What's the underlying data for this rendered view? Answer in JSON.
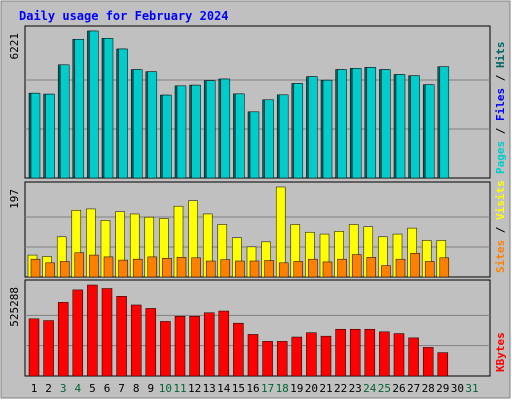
{
  "title": "Daily usage for February 2024",
  "colors": {
    "outer_bg": "#c0c0c0",
    "plot_bg": "#c0c0c0",
    "frame_dark": "#808080",
    "frame_light": "#ffffff",
    "title": "#0000ff",
    "hits": "#006666",
    "files": "#0000ff",
    "pages": "#00cccc",
    "visits": "#ffff00",
    "sites": "#ff8000",
    "kbytes": "#ff0000",
    "day_weekday": "#000000",
    "day_weekend": "#006633"
  },
  "chart_data": [
    {
      "type": "bar",
      "panel": "hits-files-pages",
      "ymax_label": "6221",
      "ylim": [
        0,
        6221
      ],
      "legend": [
        "Pages",
        "Files",
        "Hits"
      ],
      "categories": [
        "1",
        "2",
        "3",
        "4",
        "5",
        "6",
        "7",
        "8",
        "9",
        "10",
        "11",
        "12",
        "13",
        "14",
        "15",
        "16",
        "17",
        "18",
        "19",
        "20",
        "21",
        "22",
        "23",
        "24",
        "25",
        "26",
        "27",
        "28",
        "29"
      ],
      "series": [
        {
          "name": "Hits",
          "values": [
            3590,
            3550,
            4790,
            5870,
            6221,
            5910,
            5460,
            4590,
            4500,
            3510,
            3900,
            3930,
            4120,
            4190,
            3560,
            2800,
            3310,
            3520,
            4000,
            4290,
            4140,
            4590,
            4640,
            4680,
            4590,
            4380,
            4330,
            3950,
            4710
          ]
        },
        {
          "name": "Files",
          "values": [
            3590,
            3550,
            4790,
            5870,
            6221,
            5910,
            5460,
            4590,
            4500,
            3510,
            3900,
            3930,
            4120,
            4190,
            3560,
            2800,
            3310,
            3520,
            4000,
            4290,
            4140,
            4590,
            4640,
            4680,
            4590,
            4380,
            4330,
            3950,
            4710
          ]
        }
      ]
    },
    {
      "type": "bar",
      "panel": "visits-sites",
      "ymax_label": "197",
      "ylim": [
        0,
        197
      ],
      "legend": [
        "Sites",
        "Visits"
      ],
      "categories": [
        "1",
        "2",
        "3",
        "4",
        "5",
        "6",
        "7",
        "8",
        "9",
        "10",
        "11",
        "12",
        "13",
        "14",
        "15",
        "16",
        "17",
        "18",
        "19",
        "20",
        "21",
        "22",
        "23",
        "24",
        "25",
        "26",
        "27",
        "28",
        "29"
      ],
      "series": [
        {
          "name": "Visits",
          "values": [
            48,
            45,
            88,
            146,
            149,
            124,
            143,
            138,
            131,
            128,
            155,
            167,
            138,
            115,
            86,
            66,
            77,
            197,
            115,
            98,
            94,
            100,
            115,
            110,
            88,
            94,
            107,
            80,
            80
          ]
        },
        {
          "name": "Sites",
          "values": [
            39,
            31,
            34,
            53,
            48,
            44,
            37,
            39,
            44,
            41,
            43,
            42,
            35,
            38,
            35,
            35,
            36,
            31,
            34,
            39,
            33,
            39,
            49,
            43,
            25,
            39,
            52,
            34,
            42
          ]
        }
      ]
    },
    {
      "type": "bar",
      "panel": "kbytes",
      "ymax_label": "525288",
      "ylim": [
        0,
        525288
      ],
      "legend": [
        "KBytes"
      ],
      "categories": [
        "1",
        "2",
        "3",
        "4",
        "5",
        "6",
        "7",
        "8",
        "9",
        "10",
        "11",
        "12",
        "13",
        "14",
        "15",
        "16",
        "17",
        "18",
        "19",
        "20",
        "21",
        "22",
        "23",
        "24",
        "25",
        "26",
        "27",
        "28",
        "29"
      ],
      "series": [
        {
          "name": "KBytes",
          "values": [
            330000,
            320000,
            425000,
            497000,
            525288,
            505000,
            460000,
            410000,
            390000,
            315000,
            345000,
            345000,
            365000,
            375000,
            305000,
            240000,
            200000,
            200000,
            225000,
            250000,
            230000,
            270000,
            270000,
            270000,
            255000,
            245000,
            220000,
            165000,
            135000
          ]
        }
      ]
    }
  ],
  "x_labels": [
    {
      "text": "1",
      "weekend": false
    },
    {
      "text": "2",
      "weekend": false
    },
    {
      "text": "3",
      "weekend": true
    },
    {
      "text": "4",
      "weekend": true
    },
    {
      "text": "5",
      "weekend": false
    },
    {
      "text": "6",
      "weekend": false
    },
    {
      "text": "7",
      "weekend": false
    },
    {
      "text": "8",
      "weekend": false
    },
    {
      "text": "9",
      "weekend": false
    },
    {
      "text": "10",
      "weekend": true
    },
    {
      "text": "11",
      "weekend": true
    },
    {
      "text": "12",
      "weekend": false
    },
    {
      "text": "13",
      "weekend": false
    },
    {
      "text": "14",
      "weekend": false
    },
    {
      "text": "15",
      "weekend": false
    },
    {
      "text": "16",
      "weekend": false
    },
    {
      "text": "17",
      "weekend": true
    },
    {
      "text": "18",
      "weekend": true
    },
    {
      "text": "19",
      "weekend": false
    },
    {
      "text": "20",
      "weekend": false
    },
    {
      "text": "21",
      "weekend": false
    },
    {
      "text": "22",
      "weekend": false
    },
    {
      "text": "23",
      "weekend": false
    },
    {
      "text": "24",
      "weekend": true
    },
    {
      "text": "25",
      "weekend": true
    },
    {
      "text": "26",
      "weekend": false
    },
    {
      "text": "27",
      "weekend": false
    },
    {
      "text": "28",
      "weekend": false
    },
    {
      "text": "29",
      "weekend": false
    },
    {
      "text": "30",
      "weekend": false
    },
    {
      "text": "31",
      "weekend": true
    }
  ]
}
